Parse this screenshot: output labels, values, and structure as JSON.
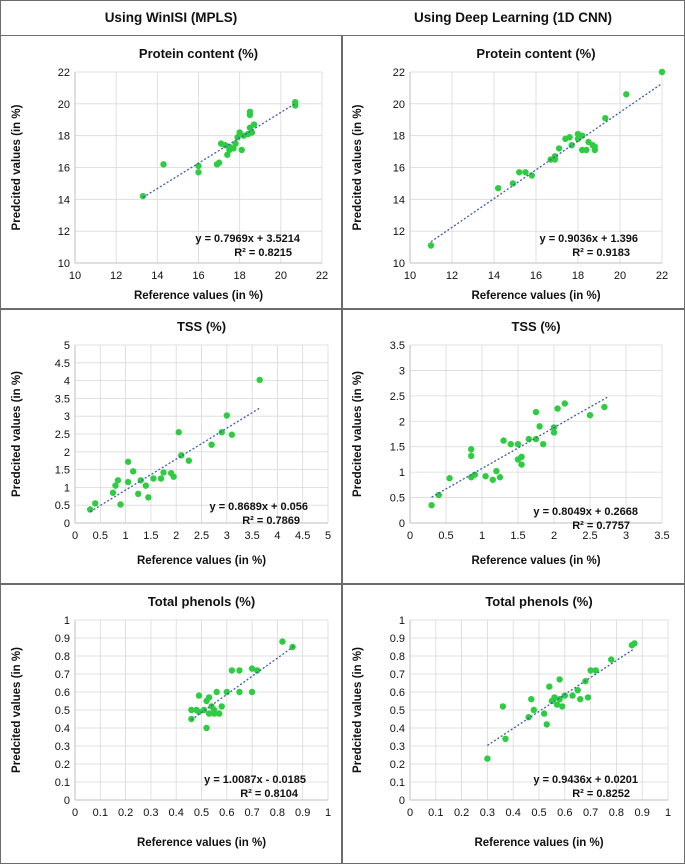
{
  "headers": {
    "left": "Using WinISI (MPLS)",
    "right": "Using Deep Learning (1D CNN)"
  },
  "colors": {
    "point": "#2ecc40",
    "trendline": "#3b5fa8",
    "border": "#6b6b6b"
  },
  "chart_data": [
    {
      "id": "protein-mpls",
      "type": "scatter",
      "title": "Protein content (%)",
      "xlabel": "Reference values (in %)",
      "ylabel": "Predcited values (in %)",
      "xlim": [
        10,
        22
      ],
      "ylim": [
        10,
        22
      ],
      "xticks": [
        "10",
        "12",
        "14",
        "16",
        "18",
        "20",
        "22"
      ],
      "yticks": [
        "10",
        "12",
        "14",
        "16",
        "18",
        "20",
        "22"
      ],
      "xtick_values": [
        10,
        12,
        14,
        16,
        18,
        20,
        22
      ],
      "ytick_values": [
        10,
        12,
        14,
        16,
        18,
        20,
        22
      ],
      "trend": {
        "slope": 0.7969,
        "intercept": 3.5214,
        "x_range": [
          13.3,
          20.7
        ]
      },
      "equation": "y = 0.7969x + 3.5214",
      "r2": "R² = 0.8215",
      "points": [
        [
          13.3,
          14.2
        ],
        [
          14.3,
          16.2
        ],
        [
          16,
          16.1
        ],
        [
          16,
          15.7
        ],
        [
          16.9,
          16.2
        ],
        [
          17,
          16.3
        ],
        [
          17.1,
          17.5
        ],
        [
          17.3,
          17.4
        ],
        [
          17.5,
          17.1
        ],
        [
          17.4,
          16.8
        ],
        [
          17.5,
          17.3
        ],
        [
          17.7,
          17.2
        ],
        [
          17.9,
          17.9
        ],
        [
          17.8,
          17.5
        ],
        [
          18,
          18.2
        ],
        [
          18.1,
          17.1
        ],
        [
          18.2,
          18.0
        ],
        [
          18.4,
          18.1
        ],
        [
          18.5,
          19.3
        ],
        [
          18.5,
          19.5
        ],
        [
          18.6,
          18.2
        ],
        [
          18.7,
          18.7
        ],
        [
          18.5,
          18.5
        ],
        [
          20.7,
          20.1
        ],
        [
          20.7,
          19.9
        ]
      ]
    },
    {
      "id": "protein-cnn",
      "type": "scatter",
      "title": "Protein content (%)",
      "xlabel": "Reference values (in %)",
      "ylabel": "Predcited values (in %)",
      "xlim": [
        10,
        22
      ],
      "ylim": [
        10,
        22
      ],
      "xticks": [
        "10",
        "12",
        "14",
        "16",
        "18",
        "20",
        "22"
      ],
      "yticks": [
        "10",
        "12",
        "14",
        "16",
        "18",
        "20",
        "22"
      ],
      "xtick_values": [
        10,
        12,
        14,
        16,
        18,
        20,
        22
      ],
      "ytick_values": [
        10,
        12,
        14,
        16,
        18,
        20,
        22
      ],
      "trend": {
        "slope": 0.9036,
        "intercept": 1.396,
        "x_range": [
          11,
          22
        ]
      },
      "equation": "y = 0.9036x + 1.396",
      "r2": "R² = 0.9183",
      "points": [
        [
          11,
          11.1
        ],
        [
          14.2,
          14.7
        ],
        [
          14.9,
          15
        ],
        [
          15.2,
          15.7
        ],
        [
          15.5,
          15.7
        ],
        [
          15.8,
          15.5
        ],
        [
          16.7,
          16.5
        ],
        [
          16.9,
          16.5
        ],
        [
          16.9,
          16.7
        ],
        [
          17.1,
          17.2
        ],
        [
          17.4,
          17.8
        ],
        [
          17.6,
          17.9
        ],
        [
          17.7,
          17.4
        ],
        [
          18,
          18.1
        ],
        [
          18,
          17.8
        ],
        [
          18.2,
          18
        ],
        [
          18.2,
          17.1
        ],
        [
          18.4,
          17.1
        ],
        [
          18.5,
          17.6
        ],
        [
          18.7,
          17.4
        ],
        [
          18.8,
          17.1
        ],
        [
          18.8,
          17.3
        ],
        [
          19.3,
          19.1
        ],
        [
          20.3,
          20.6
        ],
        [
          22,
          22
        ]
      ]
    },
    {
      "id": "tss-mpls",
      "type": "scatter",
      "title": "TSS (%)",
      "xlabel": "Reference values (in %)",
      "ylabel": "Predcited values (in %)",
      "xlim": [
        0,
        5
      ],
      "ylim": [
        0,
        5
      ],
      "xticks": [
        "0",
        "0.5",
        "1",
        "1.5",
        "2",
        "2.5",
        "3",
        "3.5",
        "4",
        "4.5",
        "5"
      ],
      "yticks": [
        "0",
        "0.5",
        "1",
        "1.5",
        "2",
        "2.5",
        "3",
        "3.5",
        "4",
        "4.5",
        "5"
      ],
      "xtick_values": [
        0,
        0.5,
        1,
        1.5,
        2,
        2.5,
        3,
        3.5,
        4,
        4.5,
        5
      ],
      "ytick_values": [
        0,
        0.5,
        1,
        1.5,
        2,
        2.5,
        3,
        3.5,
        4,
        4.5,
        5
      ],
      "trend": {
        "slope": 0.8689,
        "intercept": 0.056,
        "x_range": [
          0.3,
          3.65
        ]
      },
      "equation": "y = 0.8689x + 0.056",
      "r2": "R² = 0.7869",
      "points": [
        [
          0.3,
          0.38
        ],
        [
          0.4,
          0.55
        ],
        [
          0.75,
          0.85
        ],
        [
          0.8,
          1.05
        ],
        [
          0.85,
          1.2
        ],
        [
          0.9,
          0.52
        ],
        [
          1.05,
          1.72
        ],
        [
          1.05,
          1.15
        ],
        [
          1.15,
          1.45
        ],
        [
          1.25,
          0.82
        ],
        [
          1.3,
          1.2
        ],
        [
          1.4,
          1.05
        ],
        [
          1.45,
          0.72
        ],
        [
          1.55,
          1.25
        ],
        [
          1.7,
          1.25
        ],
        [
          1.75,
          1.42
        ],
        [
          1.9,
          1.4
        ],
        [
          1.95,
          1.3
        ],
        [
          2.05,
          2.55
        ],
        [
          2.1,
          1.9
        ],
        [
          2.25,
          1.75
        ],
        [
          2.7,
          2.2
        ],
        [
          2.9,
          2.55
        ],
        [
          3,
          3.02
        ],
        [
          3.1,
          2.48
        ],
        [
          3.65,
          4.02
        ]
      ]
    },
    {
      "id": "tss-cnn",
      "type": "scatter",
      "title": "TSS (%)",
      "xlabel": "Reference values (in %)",
      "ylabel": "Predcited values (in %)",
      "xlim": [
        0,
        3.5
      ],
      "ylim": [
        0,
        3.5
      ],
      "xticks": [
        "0",
        "0.5",
        "1",
        "1.5",
        "2",
        "2.5",
        "3",
        "3.5"
      ],
      "yticks": [
        "0",
        "0.5",
        "1",
        "1.5",
        "2",
        "2.5",
        "3",
        "3.5"
      ],
      "xtick_values": [
        0,
        0.5,
        1,
        1.5,
        2,
        2.5,
        3,
        3.5
      ],
      "ytick_values": [
        0,
        0.5,
        1,
        1.5,
        2,
        2.5,
        3,
        3.5
      ],
      "trend": {
        "slope": 0.8049,
        "intercept": 0.2668,
        "x_range": [
          0.3,
          2.75
        ]
      },
      "equation": "y = 0.8049x + 0.2668",
      "r2": "R² = 0.7757",
      "points": [
        [
          0.3,
          0.35
        ],
        [
          0.4,
          0.55
        ],
        [
          0.55,
          0.88
        ],
        [
          0.85,
          0.9
        ],
        [
          0.85,
          1.32
        ],
        [
          0.85,
          1.45
        ],
        [
          0.9,
          0.95
        ],
        [
          1.05,
          0.92
        ],
        [
          1.15,
          0.85
        ],
        [
          1.2,
          1.02
        ],
        [
          1.25,
          0.9
        ],
        [
          1.3,
          1.62
        ],
        [
          1.4,
          1.55
        ],
        [
          1.5,
          1.55
        ],
        [
          1.5,
          1.25
        ],
        [
          1.55,
          1.3
        ],
        [
          1.55,
          1.15
        ],
        [
          1.65,
          1.65
        ],
        [
          1.75,
          1.65
        ],
        [
          1.75,
          2.18
        ],
        [
          1.8,
          1.9
        ],
        [
          1.85,
          1.55
        ],
        [
          2,
          1.78
        ],
        [
          2,
          1.88
        ],
        [
          2.05,
          2.25
        ],
        [
          2.15,
          2.35
        ],
        [
          2.5,
          2.12
        ],
        [
          2.7,
          2.28
        ]
      ]
    },
    {
      "id": "phenols-mpls",
      "type": "scatter",
      "title": "Total phenols (%)",
      "xlabel": "Reference values (in %)",
      "ylabel": "Predcited values (in %)",
      "xlim": [
        0,
        1
      ],
      "ylim": [
        0,
        1
      ],
      "xticks": [
        "0",
        "0.1",
        "0.2",
        "0.3",
        "0.4",
        "0.5",
        "0.6",
        "0.7",
        "0.8",
        "0.9",
        "1"
      ],
      "yticks": [
        "0",
        "0.1",
        "0.2",
        "0.3",
        "0.4",
        "0.5",
        "0.6",
        "0.7",
        "0.8",
        "0.9",
        "1"
      ],
      "xtick_values": [
        0,
        0.1,
        0.2,
        0.3,
        0.4,
        0.5,
        0.6,
        0.7,
        0.8,
        0.9,
        1
      ],
      "ytick_values": [
        0,
        0.1,
        0.2,
        0.3,
        0.4,
        0.5,
        0.6,
        0.7,
        0.8,
        0.9,
        1
      ],
      "trend": {
        "slope": 1.0087,
        "intercept": -0.0185,
        "x_range": [
          0.46,
          0.87
        ]
      },
      "equation": "y = 1.0087x - 0.0185",
      "r2": "R² = 0.8104",
      "points": [
        [
          0.46,
          0.45
        ],
        [
          0.46,
          0.5
        ],
        [
          0.48,
          0.5
        ],
        [
          0.49,
          0.49
        ],
        [
          0.49,
          0.58
        ],
        [
          0.51,
          0.5
        ],
        [
          0.52,
          0.55
        ],
        [
          0.52,
          0.4
        ],
        [
          0.53,
          0.57
        ],
        [
          0.53,
          0.48
        ],
        [
          0.54,
          0.52
        ],
        [
          0.55,
          0.5
        ],
        [
          0.55,
          0.48
        ],
        [
          0.56,
          0.6
        ],
        [
          0.57,
          0.48
        ],
        [
          0.58,
          0.52
        ],
        [
          0.6,
          0.6
        ],
        [
          0.62,
          0.72
        ],
        [
          0.65,
          0.72
        ],
        [
          0.65,
          0.6
        ],
        [
          0.7,
          0.6
        ],
        [
          0.7,
          0.73
        ],
        [
          0.72,
          0.72
        ],
        [
          0.82,
          0.88
        ],
        [
          0.86,
          0.85
        ]
      ]
    },
    {
      "id": "phenols-cnn",
      "type": "scatter",
      "title": "Total phenols (%)",
      "xlabel": "Reference values (in %)",
      "ylabel": "Predcited values (in %)",
      "xlim": [
        0,
        1
      ],
      "ylim": [
        0,
        1
      ],
      "xticks": [
        "0",
        "0.1",
        "0.2",
        "0.3",
        "0.4",
        "0.5",
        "0.6",
        "0.7",
        "0.8",
        "0.9",
        "1"
      ],
      "yticks": [
        "0",
        "0.1",
        "0.2",
        "0.3",
        "0.4",
        "0.5",
        "0.6",
        "0.7",
        "0.8",
        "0.9",
        "1"
      ],
      "xtick_values": [
        0,
        0.1,
        0.2,
        0.3,
        0.4,
        0.5,
        0.6,
        0.7,
        0.8,
        0.9,
        1
      ],
      "ytick_values": [
        0,
        0.1,
        0.2,
        0.3,
        0.4,
        0.5,
        0.6,
        0.7,
        0.8,
        0.9,
        1
      ],
      "trend": {
        "slope": 0.9436,
        "intercept": 0.0201,
        "x_range": [
          0.3,
          0.87
        ]
      },
      "equation": "y = 0.9436x + 0.0201",
      "r2": "R² = 0.8252",
      "points": [
        [
          0.3,
          0.23
        ],
        [
          0.36,
          0.52
        ],
        [
          0.37,
          0.34
        ],
        [
          0.46,
          0.46
        ],
        [
          0.47,
          0.56
        ],
        [
          0.48,
          0.5
        ],
        [
          0.52,
          0.48
        ],
        [
          0.53,
          0.42
        ],
        [
          0.54,
          0.63
        ],
        [
          0.55,
          0.55
        ],
        [
          0.56,
          0.57
        ],
        [
          0.57,
          0.53
        ],
        [
          0.58,
          0.56
        ],
        [
          0.58,
          0.67
        ],
        [
          0.59,
          0.52
        ],
        [
          0.6,
          0.58
        ],
        [
          0.63,
          0.58
        ],
        [
          0.65,
          0.61
        ],
        [
          0.66,
          0.56
        ],
        [
          0.68,
          0.66
        ],
        [
          0.69,
          0.57
        ],
        [
          0.7,
          0.72
        ],
        [
          0.72,
          0.72
        ],
        [
          0.78,
          0.78
        ],
        [
          0.86,
          0.86
        ],
        [
          0.87,
          0.87
        ]
      ]
    }
  ]
}
